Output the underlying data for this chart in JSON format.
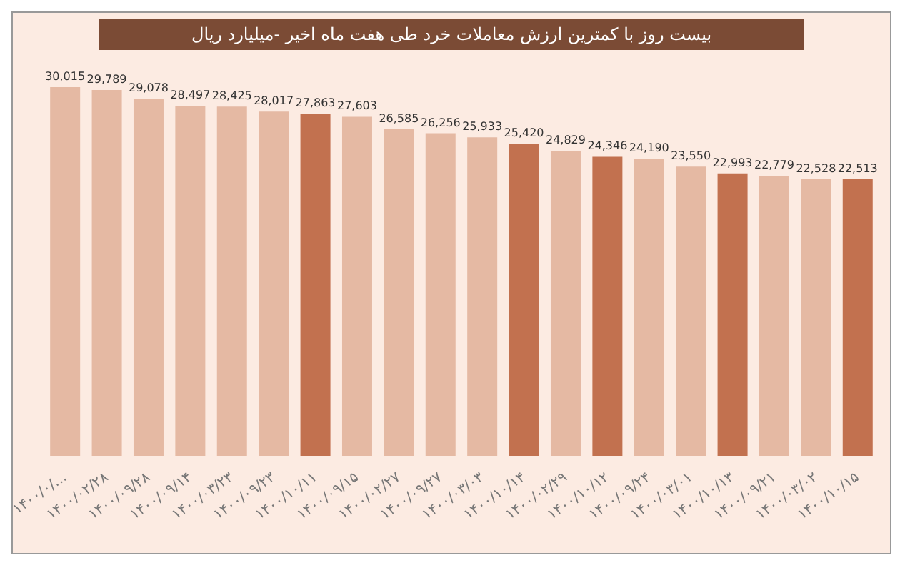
{
  "chart_data": {
    "type": "bar",
    "title": "بیست روز با کمترین ارزش معاملات خرد طی هفت ماه اخیر -میلیارد ریال",
    "categories": [
      "۱۴۰۰/۰/...",
      "۱۴۰۰/۰۲/۲۸",
      "۱۴۰۰/۰۹/۲۸",
      "۱۴۰۰/۰۹/۱۴",
      "۱۴۰۰/۰۳/۲۳",
      "۱۴۰۰/۰۹/۲۳",
      "۱۴۰۰/۱۰/۱۱",
      "۱۴۰۰/۰۹/۱۵",
      "۱۴۰۰/۰۲/۲۷",
      "۱۴۰۰/۰۹/۲۷",
      "۱۴۰۰/۰۳/۰۳",
      "۱۴۰۰/۱۰/۱۴",
      "۱۴۰۰/۰۲/۲۹",
      "۱۴۰۰/۱۰/۱۲",
      "۱۴۰۰/۰۹/۲۴",
      "۱۴۰۰/۰۳/۰۱",
      "۱۴۰۰/۱۰/۱۳",
      "۱۴۰۰/۰۹/۲۱",
      "۱۴۰۰/۰۳/۰۲",
      "۱۴۰۰/۱۰/۱۵"
    ],
    "values": [
      30015,
      29789,
      29078,
      28497,
      28425,
      28017,
      27863,
      27603,
      26585,
      26256,
      25933,
      25420,
      24829,
      24346,
      24190,
      23550,
      22993,
      22779,
      22528,
      22513
    ],
    "colors": [
      "#e5b9a3",
      "#e5b9a3",
      "#e5b9a3",
      "#e5b9a3",
      "#e5b9a3",
      "#e5b9a3",
      "#c2714f",
      "#e5b9a3",
      "#e5b9a3",
      "#e5b9a3",
      "#e5b9a3",
      "#c2714f",
      "#e5b9a3",
      "#c2714f",
      "#e5b9a3",
      "#e5b9a3",
      "#c2714f",
      "#e5b9a3",
      "#e5b9a3",
      "#c2714f"
    ],
    "value_labels": [
      "30,015",
      "29,789",
      "29,078",
      "28,497",
      "28,425",
      "28,017",
      "27,863",
      "27,603",
      "26,585",
      "26,256",
      "25,933",
      "25,420",
      "24,829",
      "24,346",
      "24,190",
      "23,550",
      "22,993",
      "22,779",
      "22,528",
      "22,513"
    ],
    "grid": false,
    "legend": false
  }
}
